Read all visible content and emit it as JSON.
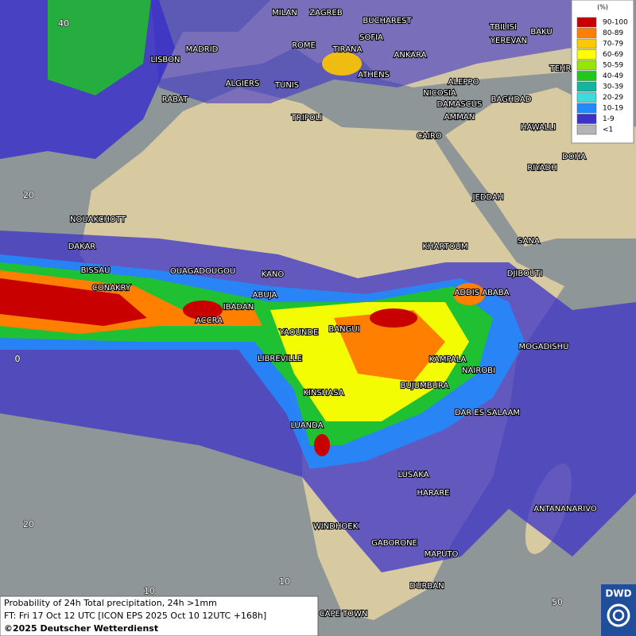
{
  "legend": {
    "title": "(%)",
    "items": [
      {
        "label": "90-100",
        "color": "#c80000"
      },
      {
        "label": "80-89",
        "color": "#ff7f00"
      },
      {
        "label": "70-79",
        "color": "#ffc800"
      },
      {
        "label": "60-69",
        "color": "#ffff00"
      },
      {
        "label": "50-59",
        "color": "#96e600"
      },
      {
        "label": "40-49",
        "color": "#1ec81e"
      },
      {
        "label": "30-39",
        "color": "#14b4a0"
      },
      {
        "label": "20-29",
        "color": "#3cdcdc"
      },
      {
        "label": "10-19",
        "color": "#1e8cff"
      },
      {
        "label": "1-9",
        "color": "#3c32c8"
      },
      {
        "label": "<1",
        "color": "#b4b4b4"
      }
    ]
  },
  "cities": [
    "MILAN",
    "ZAGREB",
    "BUCHAREST",
    "TBILISI",
    "BAKU",
    "MADRID",
    "ROME",
    "SOFIA",
    "YEREVAN",
    "TEHRAN",
    "LISBON",
    "TIRANA",
    "ANKARA",
    "ALGIERS",
    "TUNIS",
    "ATHENS",
    "ALEPPO",
    "RABAT",
    "NICOSIA",
    "BAGHDAD",
    "DAMASCUS",
    "AMMAN",
    "TRIPOLI",
    "HAWALLI",
    "CAIRO",
    "DOHA",
    "RIYADH",
    "JEDDAH",
    "NOUAKCHOTT",
    "KHARTOUM",
    "DAKAR",
    "SANA",
    "BISSAU",
    "OUAGADOUGOU",
    "DJIBOUTI",
    "KANO",
    "CONAKRY",
    "ABUJA",
    "ADDIS ABABA",
    "IBADAN",
    "ACCRA",
    "BANGUI",
    "YAOUNDE",
    "MOGADISHU",
    "LIBREVILLE",
    "KAMPALA",
    "NAIROBI",
    "BUJUMBURA",
    "KINSHASA",
    "DAR ES SALAAM",
    "LUANDA",
    "LUSAKA",
    "HARARE",
    "ANTANANARIVO",
    "WINDHOEK",
    "GABORONE",
    "MAPUTO",
    "DURBAN",
    "CAPE TOWN"
  ],
  "grid_labels": [
    "40",
    "20",
    "0",
    "20",
    "10",
    "10",
    "50"
  ],
  "footer": {
    "line1": "Probability of 24h Total precipitation, 24h >1mm",
    "line2": "FT: Fri 17 Oct 12 UTC [ICON EPS 2025 Oct 10 12UTC +168h]",
    "line3": "©2025 Deutscher Wetterdienst"
  },
  "logo": "DWD"
}
